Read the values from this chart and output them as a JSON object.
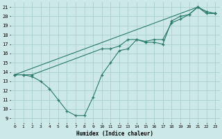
{
  "xlabel": "Humidex (Indice chaleur)",
  "xlim": [
    -0.5,
    23.5
  ],
  "ylim": [
    8.5,
    21.5
  ],
  "yticks": [
    9,
    10,
    11,
    12,
    13,
    14,
    15,
    16,
    17,
    18,
    19,
    20,
    21
  ],
  "xticks": [
    0,
    1,
    2,
    3,
    4,
    5,
    6,
    7,
    8,
    9,
    10,
    11,
    12,
    13,
    14,
    15,
    16,
    17,
    18,
    19,
    20,
    21,
    22,
    23
  ],
  "background_color": "#cce8e8",
  "grid_color": "#aacece",
  "line_color": "#2a7a6a",
  "series1_x": [
    0,
    1,
    2,
    3,
    4,
    5,
    6,
    7,
    8,
    9,
    10,
    11,
    12,
    13,
    14,
    15,
    16,
    17,
    18,
    19,
    20,
    21,
    22,
    23
  ],
  "series1_y": [
    13.7,
    13.7,
    13.5,
    13.0,
    12.2,
    11.0,
    9.8,
    9.3,
    9.3,
    11.3,
    13.7,
    15.0,
    16.3,
    16.5,
    17.5,
    17.2,
    17.2,
    17.0,
    19.5,
    20.0,
    20.2,
    21.0,
    20.3,
    20.3
  ],
  "series2_x": [
    0,
    1,
    2,
    10,
    11,
    12,
    13,
    14,
    15,
    16,
    17,
    18,
    19,
    20,
    21,
    22,
    23
  ],
  "series2_y": [
    13.7,
    13.7,
    13.7,
    16.5,
    16.5,
    16.8,
    17.5,
    17.5,
    17.3,
    17.5,
    17.5,
    19.3,
    19.7,
    20.2,
    21.0,
    20.5,
    20.3
  ],
  "series3_x": [
    0,
    21,
    22,
    23
  ],
  "series3_y": [
    13.7,
    21.0,
    20.5,
    20.3
  ]
}
